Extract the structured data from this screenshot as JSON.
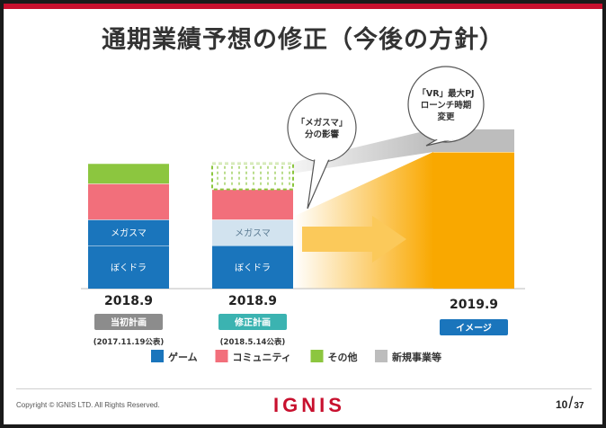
{
  "title": "通期業績予想の修正（今後の方針）",
  "colors": {
    "game": "#1a75bc",
    "community": "#f26f7b",
    "other": "#8cc63f",
    "new_business": "#bdbdbd",
    "image_bar": "#f9a800",
    "accent": "#c8102e",
    "arrow": "#fbc95a"
  },
  "chart_data": {
    "type": "bar",
    "stacked": true,
    "categories": [
      "2018.9",
      "2018.9",
      "2019.9"
    ],
    "bars": [
      {
        "label": "2018.9",
        "tag": "当初計画",
        "date": "(2017.11.19公表)",
        "segments": [
          {
            "series": "ゲーム",
            "name": "ぼくドラ",
            "value": 30
          },
          {
            "series": "ゲーム",
            "name": "メガスマ",
            "value": 18
          },
          {
            "series": "コミュニティ",
            "value": 25
          },
          {
            "series": "その他",
            "value": 14
          }
        ]
      },
      {
        "label": "2018.9",
        "tag": "修正計画",
        "date": "(2018.5.14公表)",
        "segments": [
          {
            "series": "ゲーム",
            "name": "ぼくドラ",
            "value": 30
          },
          {
            "series": "ゲーム",
            "name": "メガスマ",
            "value": 18,
            "faded": true
          },
          {
            "series": "コミュニティ",
            "value": 21
          },
          {
            "series": "その他",
            "value": 18,
            "dashed": true
          }
        ]
      },
      {
        "label": "2019.9",
        "tag": "イメージ",
        "date": "",
        "segments": [
          {
            "series": "イメージ",
            "value": 95
          },
          {
            "series": "新規事業等",
            "value": 16
          }
        ]
      }
    ],
    "legend": [
      {
        "name": "ゲーム",
        "color": "#1a75bc"
      },
      {
        "name": "コミュニティ",
        "color": "#f26f7b"
      },
      {
        "name": "その他",
        "color": "#8cc63f"
      },
      {
        "name": "新規事業等",
        "color": "#bdbdbd"
      }
    ],
    "annotations": [
      {
        "text": [
          "「メガスマ」",
          "分の影響"
        ]
      },
      {
        "text": [
          "「VR」最大PJ",
          "ローンチ時期",
          "変更"
        ]
      }
    ],
    "legend_position": "bottom",
    "grid": false,
    "ylim": [
      0,
      115
    ]
  },
  "footer": {
    "copyright": "Copyright © IGNIS LTD. All Rights Reserved.",
    "logo": "IGNIS",
    "page": "10",
    "total": "37"
  }
}
